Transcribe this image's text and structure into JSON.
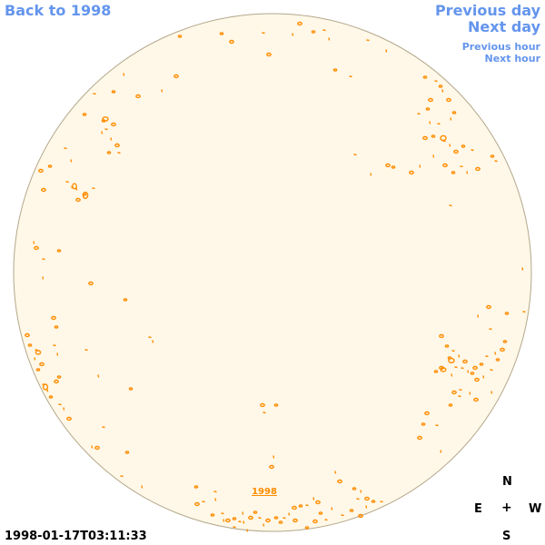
{
  "nav": {
    "back_label": "Back to 1998",
    "prev_day_label": "Previous day",
    "next_day_label": "Next day",
    "prev_hour_label": "Previous hour",
    "next_hour_label": "Next hour"
  },
  "disk": {
    "year_label": "1998",
    "fill_color": "#fff8e8",
    "edge_color": "#b4a78c",
    "feature_color": "#ff8c00"
  },
  "compass": {
    "n": "N",
    "e": "E",
    "center": "+",
    "w": "W",
    "s": "S"
  },
  "timestamp": "1998-01-17T03:11:33"
}
